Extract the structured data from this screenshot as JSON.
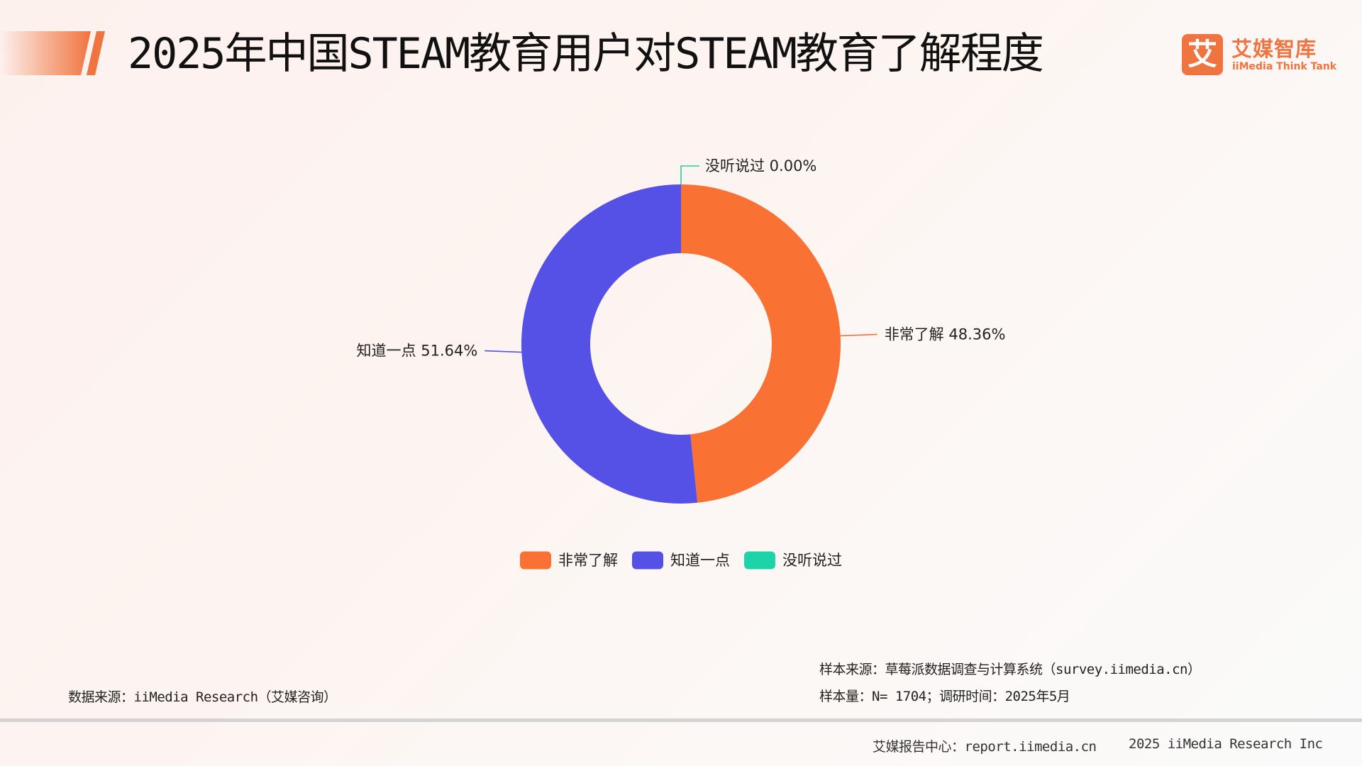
{
  "header": {
    "title": "2025年中国STEAM教育用户对STEAM教育了解程度",
    "accent_color": "#f0743f"
  },
  "logo": {
    "mark": "艾",
    "name_cn": "艾媒智库",
    "name_en": "iiMedia Think Tank",
    "color": "#f0743f"
  },
  "chart_data": {
    "type": "pie",
    "style": "donut",
    "categories": [
      "非常了解",
      "知道一点",
      "没听说过"
    ],
    "values": [
      48.36,
      51.64,
      0.0
    ],
    "labels": [
      "非常了解 48.36%",
      "知道一点 51.64%",
      "没听说过 0.00%"
    ],
    "colors": [
      "#f97133",
      "#5550e6",
      "#1dd4a8"
    ],
    "legend_position": "bottom"
  },
  "footer": {
    "data_source": "数据来源：iiMedia Research（艾媒咨询）",
    "sample_source": "样本来源：草莓派数据调查与计算系统（survey.iimedia.cn）",
    "sample_info": "样本量：N= 1704；调研时间：2025年5月",
    "report_center": "艾媒报告中心：report.iimedia.cn",
    "copyright": "2025 iiMedia Research Inc"
  }
}
